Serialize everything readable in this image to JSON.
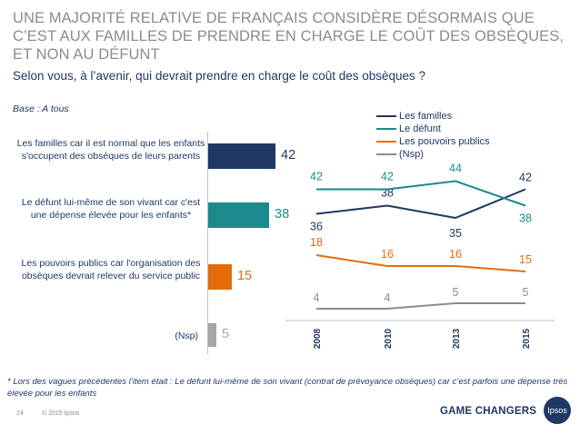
{
  "title": "UNE MAJORITÉ RELATIVE DE FRANÇAIS CONSIDÈRE DÉSORMAIS QUE C’EST AUX FAMILLES DE PRENDRE EN CHARGE LE COÛT DES OBSÈQUES, ET NON AU DÉFUNT",
  "subtitle": "Selon vous, à l’avenir, qui devrait prendre en charge le coût des obsèques ?",
  "base": "Base : A tous",
  "footnote": "* Lors des vagues précédentes l’item était : Le défunt lui-même de son vivant (contrat de prévoyance obsèques) car c’est parfois une dépense très élevée pour les enfants",
  "page_number": "24",
  "copyright": "© 2015 Ipsos",
  "brand": "GAME CHANGERS",
  "logo_text": "Ipsos",
  "chart_data": [
    {
      "type": "bar",
      "orientation": "horizontal",
      "categories": [
        "Les familles car il est normal que les enfants s'occupent des obsèques de leurs parents",
        "Le défunt lui-même de son vivant car c'est une dépense élevée pour les enfants*",
        "Les pouvoirs publics car l'organisation des obsèques devrait relever du service public",
        "(Nsp)"
      ],
      "values": [
        42,
        38,
        15,
        5
      ],
      "value_labels": [
        "42",
        "38",
        "15",
        "5"
      ],
      "colors": [
        "#1f3864",
        "#1b8a8c",
        "#e46c0a",
        "#a6a6a6"
      ]
    },
    {
      "type": "line",
      "x": [
        "2008",
        "2010",
        "2013",
        "2015"
      ],
      "legend_position": "top",
      "series": [
        {
          "name": "Les familles",
          "color": "#1f3864",
          "values": [
            36,
            38,
            35,
            42
          ]
        },
        {
          "name": "Le défunt",
          "color": "#1b8a8c",
          "values": [
            42,
            42,
            44,
            38
          ]
        },
        {
          "name": "Les pouvoirs publics",
          "color": "#e46c0a",
          "values": [
            18,
            16,
            16,
            15
          ]
        },
        {
          "name": "(Nsp)",
          "color": "#8c8c8c",
          "values": [
            4,
            4,
            5,
            5
          ]
        }
      ]
    }
  ]
}
